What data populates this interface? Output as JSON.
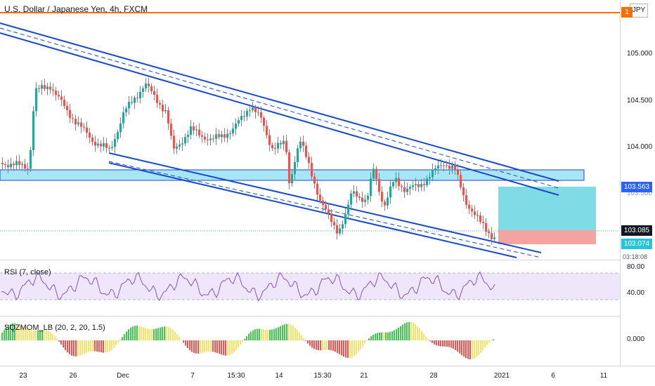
{
  "header": {
    "title": "U.S. Dollar / Japanese Yen, 4h, FXCM",
    "currency_button": "JPY"
  },
  "price_axis": {
    "labels": [
      "105.000",
      "104.500",
      "104.000"
    ],
    "top_tag": "1",
    "tags": [
      {
        "text": "103.563",
        "color": "#2962ff"
      },
      {
        "text": "103.085",
        "color": "#131722"
      },
      {
        "text": "103.074",
        "color": "#26c6da"
      }
    ],
    "partial_labels": [
      "103.500",
      "03:18:08"
    ]
  },
  "rsi": {
    "title": "RSI (7, close)",
    "labels": [
      "80.00",
      "40.00"
    ]
  },
  "sqz": {
    "title": "SQZMOM_LB (20, 2, 20, 1.5)",
    "labels": [
      "0.000"
    ]
  },
  "time_axis": {
    "labels": [
      "23",
      "26",
      "Dec",
      "7",
      "15:30",
      "14",
      "15:30",
      "21",
      "28",
      "2021",
      "6",
      "11"
    ]
  },
  "colors": {
    "up": "#26a69a",
    "down": "#ef5350",
    "channel": "#1848cc",
    "resistance": "#ff6d00",
    "zone_fill": "#a9e6f5",
    "target_fill": "#7fdbe6",
    "stop_fill": "#f4a3a0",
    "rsi_line": "#7e57c2",
    "rsi_band": "#f0e6fb"
  }
}
